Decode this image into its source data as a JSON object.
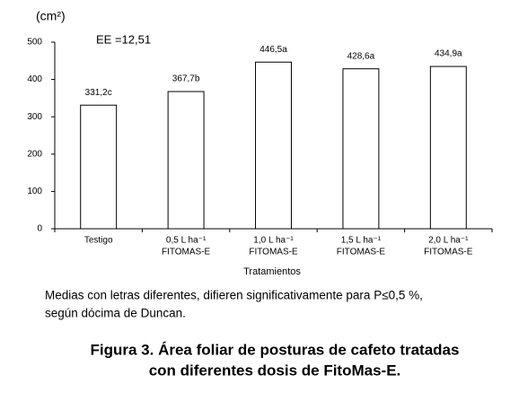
{
  "chart_data": {
    "type": "bar",
    "y_label": "(cm²)",
    "annotation": "EE =12,51",
    "x_label": "Tratamientos",
    "categories": [
      [
        "Testigo"
      ],
      [
        "0,5 L ha⁻¹",
        "FITOMAS-E"
      ],
      [
        "1,0 L ha⁻¹",
        "FITOMAS-E"
      ],
      [
        "1,5 L ha⁻¹",
        "FITOMAS-E"
      ],
      [
        "2,0 L ha⁻¹",
        "FITOMAS-E"
      ]
    ],
    "values": [
      331.2,
      367.7,
      446.5,
      428.6,
      434.9
    ],
    "value_labels": [
      "331,2c",
      "367,7b",
      "446,5a",
      "428,6a",
      "434,9a"
    ],
    "color": "#ffffff",
    "ylim": [
      0,
      500
    ],
    "yticks": [
      0,
      100,
      200,
      300,
      400,
      500
    ],
    "grid": false,
    "note": [
      "Medias con letras diferentes, difieren significativamente para P≤0,5 %,",
      "según dócima de Duncan."
    ],
    "caption": [
      "Figura 3. Área foliar de posturas de cafeto tratadas",
      "con diferentes dosis de FitoMas-E."
    ]
  }
}
